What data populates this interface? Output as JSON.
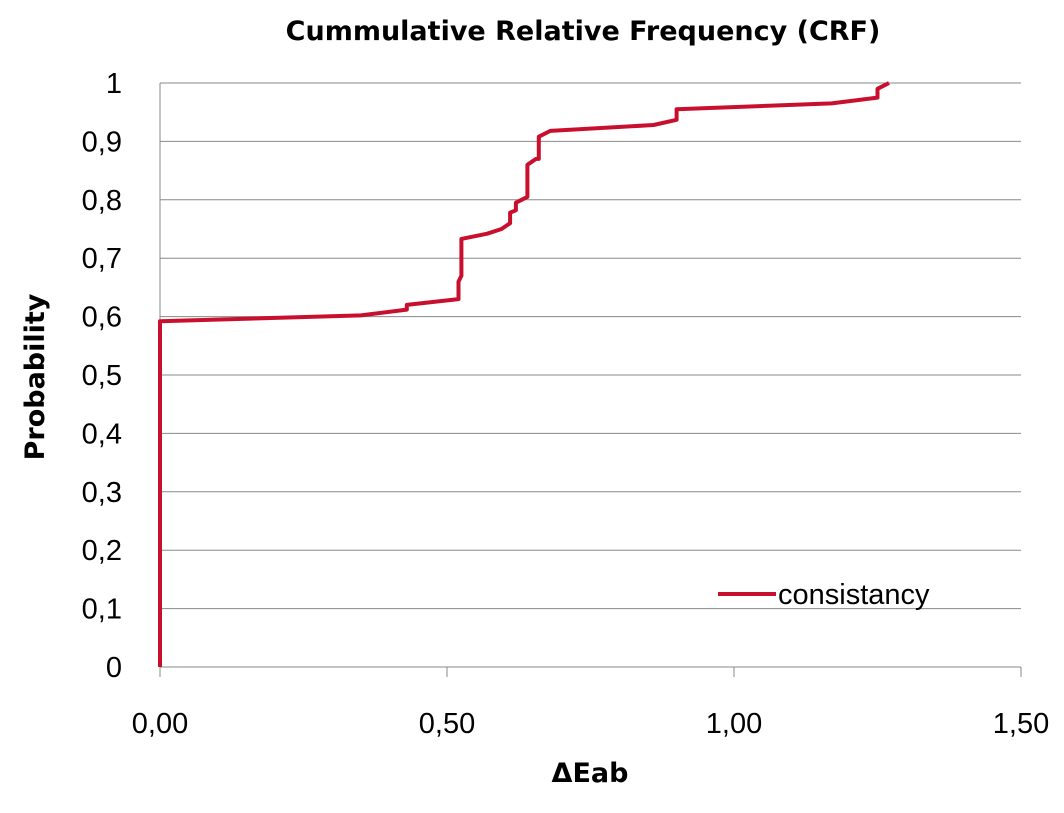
{
  "chart_data": {
    "type": "line",
    "title": "Cummulative Relative Frequency (CRF)",
    "xlabel": "ΔEab",
    "ylabel": "Probability",
    "xlim": [
      0,
      1.5
    ],
    "ylim": [
      0,
      1
    ],
    "x_ticks": [
      {
        "value": 0,
        "label": "0,00"
      },
      {
        "value": 0.5,
        "label": "0,50"
      },
      {
        "value": 1.0,
        "label": "1,00"
      },
      {
        "value": 1.5,
        "label": "1,50"
      }
    ],
    "y_ticks": [
      {
        "value": 0,
        "label": "0"
      },
      {
        "value": 0.1,
        "label": "0,1"
      },
      {
        "value": 0.2,
        "label": "0,2"
      },
      {
        "value": 0.3,
        "label": "0,3"
      },
      {
        "value": 0.4,
        "label": "0,4"
      },
      {
        "value": 0.5,
        "label": "0,5"
      },
      {
        "value": 0.6,
        "label": "0,6"
      },
      {
        "value": 0.7,
        "label": "0,7"
      },
      {
        "value": 0.8,
        "label": "0,8"
      },
      {
        "value": 0.9,
        "label": "0,9"
      },
      {
        "value": 1,
        "label": "1"
      }
    ],
    "grid": "horizontal",
    "legend_position": "bottom-right",
    "series": [
      {
        "name": "consistancy",
        "color": "#C8102E",
        "points": [
          [
            0.0,
            0.0
          ],
          [
            0.0,
            0.592
          ],
          [
            0.35,
            0.602
          ],
          [
            0.43,
            0.612
          ],
          [
            0.43,
            0.62
          ],
          [
            0.52,
            0.63
          ],
          [
            0.52,
            0.66
          ],
          [
            0.525,
            0.67
          ],
          [
            0.525,
            0.733
          ],
          [
            0.57,
            0.742
          ],
          [
            0.595,
            0.75
          ],
          [
            0.61,
            0.76
          ],
          [
            0.61,
            0.778
          ],
          [
            0.62,
            0.782
          ],
          [
            0.62,
            0.795
          ],
          [
            0.63,
            0.8
          ],
          [
            0.64,
            0.805
          ],
          [
            0.64,
            0.86
          ],
          [
            0.655,
            0.87
          ],
          [
            0.66,
            0.87
          ],
          [
            0.66,
            0.908
          ],
          [
            0.68,
            0.918
          ],
          [
            0.86,
            0.928
          ],
          [
            0.9,
            0.937
          ],
          [
            0.9,
            0.955
          ],
          [
            1.17,
            0.965
          ],
          [
            1.25,
            0.975
          ],
          [
            1.25,
            0.99
          ],
          [
            1.27,
            1.0
          ]
        ]
      }
    ]
  }
}
